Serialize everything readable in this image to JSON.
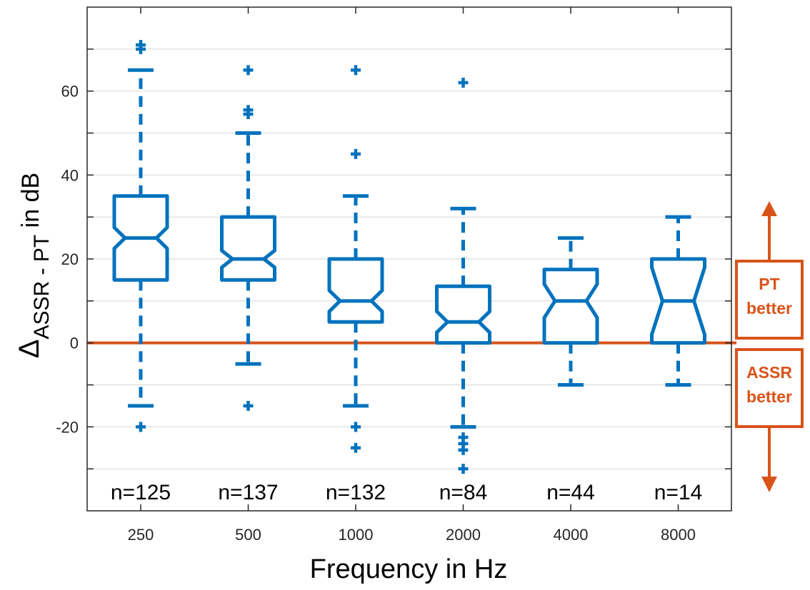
{
  "chart_data": {
    "type": "boxplot",
    "notched": true,
    "xlabel": "Frequency in Hz",
    "ylabel": {
      "symbol": "Δ",
      "subscript": "ASSR - PT",
      "suffix": " in dB"
    },
    "ylim": [
      -40,
      80
    ],
    "yticks": [
      -20,
      0,
      20,
      40,
      60
    ],
    "grid": true,
    "categories": [
      "250",
      "500",
      "1000",
      "2000",
      "4000",
      "8000"
    ],
    "n_labels": [
      "n=125",
      "n=137",
      "n=132",
      "n=84",
      "n=44",
      "n=14"
    ],
    "boxes": [
      {
        "q1": 15,
        "median": 25,
        "q3": 35,
        "notch_low": 22.5,
        "notch_high": 27.5,
        "whisker_low": -15,
        "whisker_high": 65,
        "outliers": [
          70,
          71,
          -20
        ]
      },
      {
        "q1": 15,
        "median": 20,
        "q3": 30,
        "notch_low": 18,
        "notch_high": 22,
        "whisker_low": -5,
        "whisker_high": 50,
        "outliers": [
          54.5,
          55.5,
          65,
          -15
        ]
      },
      {
        "q1": 5,
        "median": 10,
        "q3": 20,
        "notch_low": 7.5,
        "notch_high": 12.5,
        "whisker_low": -15,
        "whisker_high": 35,
        "outliers": [
          45,
          65,
          -20,
          -25
        ]
      },
      {
        "q1": 0,
        "median": 5,
        "q3": 13.5,
        "notch_low": 2.5,
        "notch_high": 7.5,
        "whisker_low": -20,
        "whisker_high": 32,
        "outliers": [
          62,
          -22.5,
          -24,
          -25.5,
          -30
        ]
      },
      {
        "q1": 0,
        "median": 10,
        "q3": 17.5,
        "notch_low": 6,
        "notch_high": 14,
        "whisker_low": -10,
        "whisker_high": 25,
        "outliers": []
      },
      {
        "q1": 0,
        "median": 10,
        "q3": 20,
        "notch_low": 2,
        "notch_high": 18,
        "whisker_low": -10,
        "whisker_high": 30,
        "outliers": []
      }
    ],
    "reference_line": 0,
    "annotations": {
      "upper_box": [
        "PT",
        "better"
      ],
      "lower_box": [
        "ASSR",
        "better"
      ]
    },
    "colors": {
      "box": "#0072bd",
      "reference": "#d95319",
      "axis": "#262626",
      "grid": "#dcdcdc"
    }
  }
}
